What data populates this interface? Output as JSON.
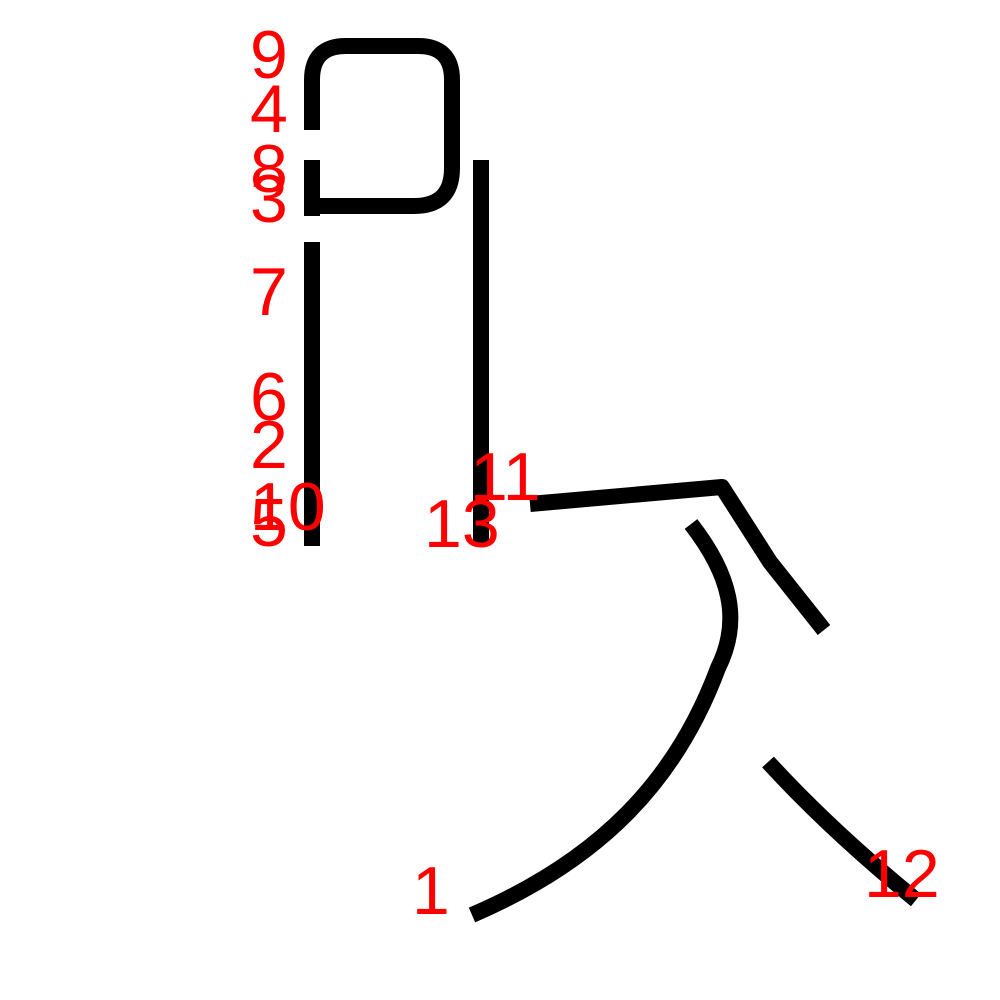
{
  "colors": {
    "stroke": "#000000",
    "label": "#ff0000",
    "background": "#ffffff"
  },
  "labels": {
    "l1": "1",
    "l2": "2",
    "l3": "3",
    "l4": "4",
    "l5": "5",
    "l6": "6",
    "l7": "7",
    "l8": "8",
    "l9": "9",
    "l10": "10",
    "l11": "11",
    "l12": "12",
    "l13": "13"
  }
}
